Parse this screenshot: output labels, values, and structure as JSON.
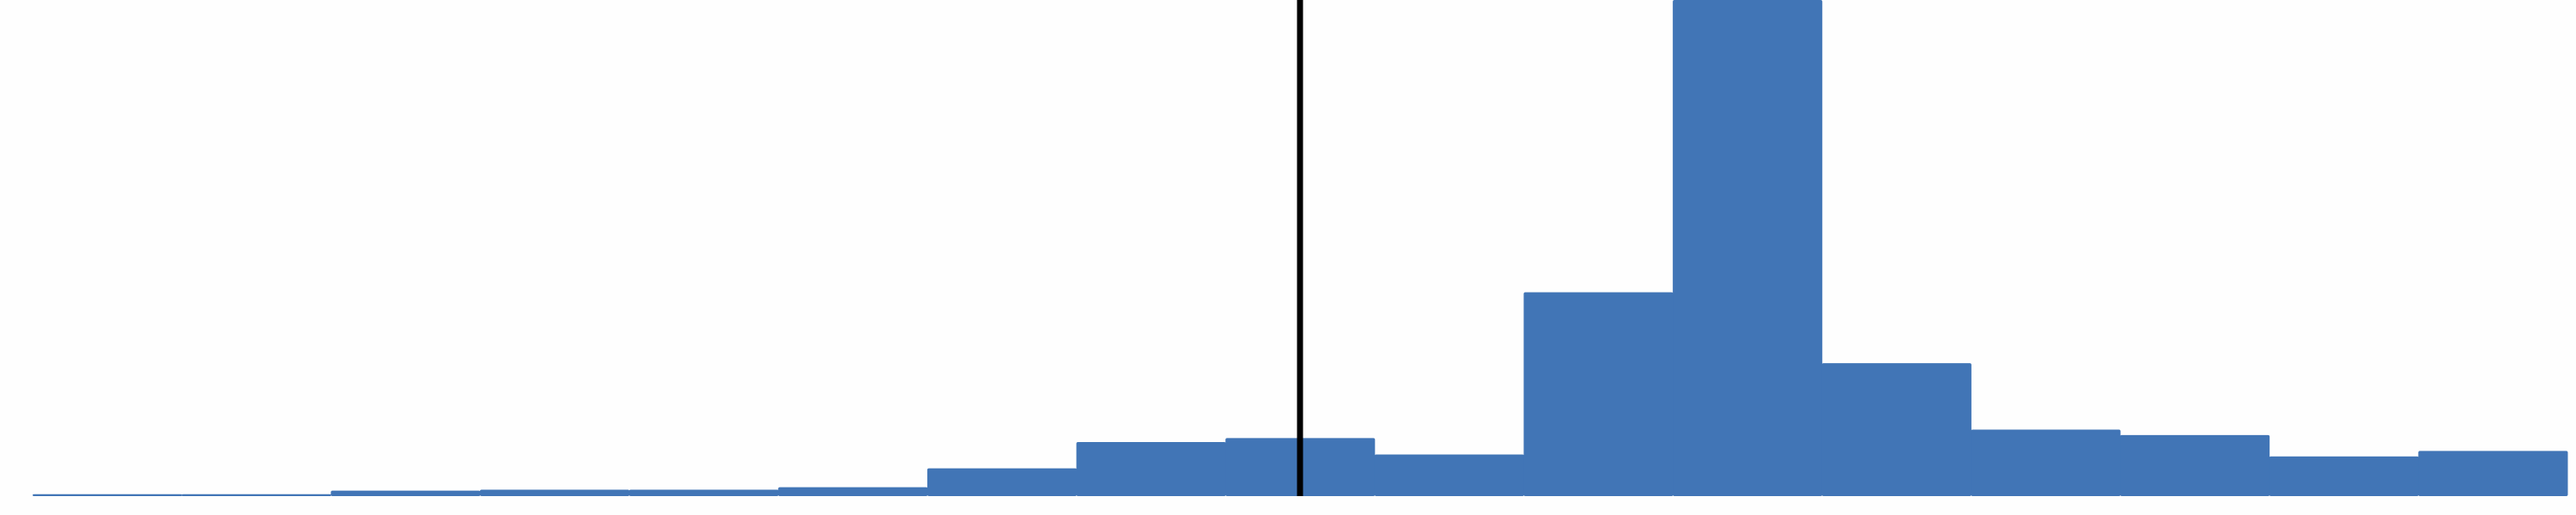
{
  "chart_data": {
    "type": "bar",
    "title": "",
    "xlabel": "",
    "ylabel": "",
    "bin_edges": [
      0,
      1,
      2,
      3,
      4,
      5,
      6,
      7,
      8,
      9,
      10,
      11,
      12,
      13,
      14,
      15,
      16,
      17
    ],
    "values": [
      0.4,
      0.4,
      1.1,
      1.3,
      1.3,
      1.8,
      5.6,
      10.9,
      11.7,
      8.4,
      41.1,
      100,
      26.8,
      13.4,
      12.3,
      8.0,
      9.1
    ],
    "ylim": [
      0,
      100
    ],
    "bar_color": "#4175b6",
    "reference_line": {
      "x": 8.5,
      "color": "#000000"
    },
    "grid": false,
    "legend": "none"
  }
}
